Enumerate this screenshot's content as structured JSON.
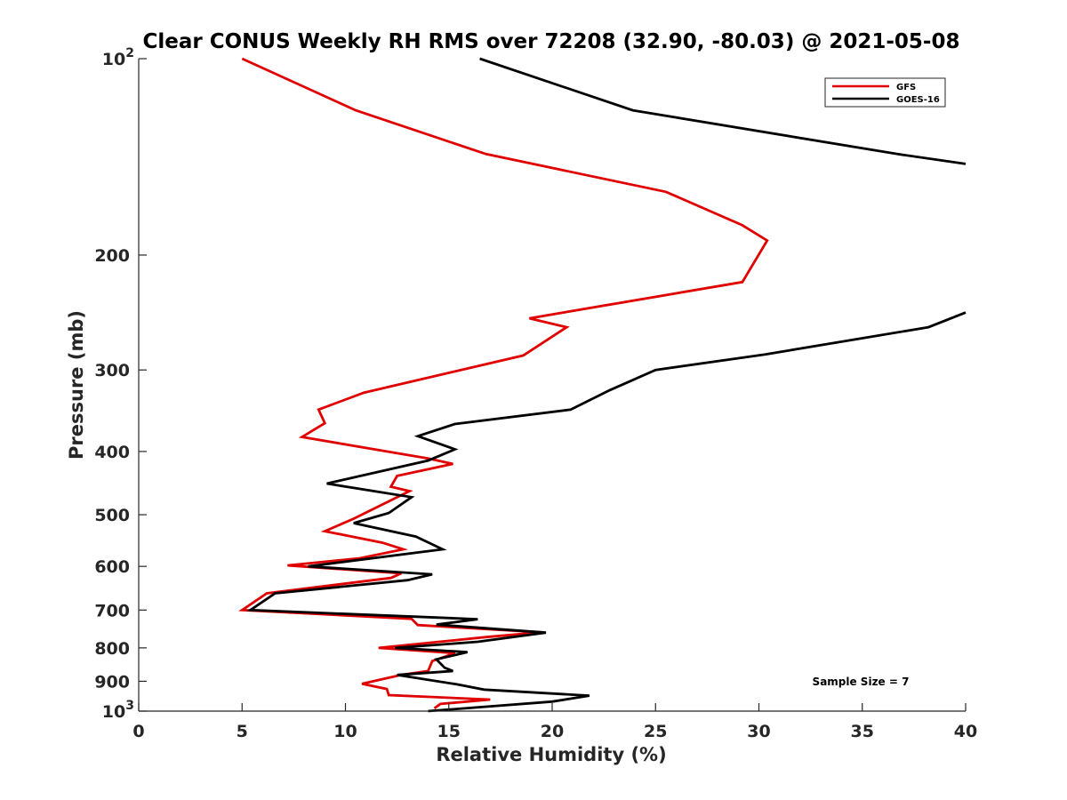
{
  "chart_data": {
    "type": "line",
    "title": "Clear CONUS Weekly RH RMS over 72208 (32.90, -80.03) @ 2021-05-08",
    "xlabel": "Relative Humidity (%)",
    "ylabel": "Pressure (mb)",
    "xlim": [
      0,
      40
    ],
    "ylim": [
      100,
      1000
    ],
    "y_scale": "log",
    "y_reversed": true,
    "grid": false,
    "legend_position": "top-right",
    "x_ticks": [
      0,
      5,
      10,
      15,
      20,
      25,
      30,
      35,
      40
    ],
    "y_ticks": [
      {
        "value": 100,
        "base": "10",
        "exp": "2"
      },
      {
        "value": 200,
        "label": "200"
      },
      {
        "value": 300,
        "label": "300"
      },
      {
        "value": 400,
        "label": "400"
      },
      {
        "value": 500,
        "label": "500"
      },
      {
        "value": 600,
        "label": "600"
      },
      {
        "value": 700,
        "label": "700"
      },
      {
        "value": 800,
        "label": "800"
      },
      {
        "value": 900,
        "label": "900"
      },
      {
        "value": 1000,
        "base": "10",
        "exp": "3"
      }
    ],
    "annotation": "Sample Size = 7",
    "series": [
      {
        "name": "GFS",
        "color": "#e00000",
        "points": [
          [
            5.0,
            100
          ],
          [
            10.5,
            120
          ],
          [
            16.8,
            140
          ],
          [
            25.5,
            160
          ],
          [
            29.2,
            180
          ],
          [
            30.4,
            190
          ],
          [
            29.2,
            220
          ],
          [
            18.9,
            250
          ],
          [
            20.7,
            258
          ],
          [
            18.6,
            285
          ],
          [
            10.9,
            325
          ],
          [
            8.7,
            345
          ],
          [
            9.0,
            362
          ],
          [
            7.9,
            380
          ],
          [
            14.0,
            410
          ],
          [
            15.2,
            418
          ],
          [
            12.5,
            436
          ],
          [
            12.2,
            453
          ],
          [
            13.1,
            460
          ],
          [
            10.4,
            507
          ],
          [
            9.0,
            530
          ],
          [
            11.8,
            552
          ],
          [
            12.8,
            565
          ],
          [
            10.7,
            583
          ],
          [
            7.2,
            598
          ],
          [
            12.7,
            615
          ],
          [
            12.2,
            625
          ],
          [
            6.2,
            660
          ],
          [
            5.0,
            700
          ],
          [
            13.2,
            722
          ],
          [
            13.5,
            738
          ],
          [
            19.5,
            757
          ],
          [
            16.8,
            770
          ],
          [
            11.6,
            800
          ],
          [
            15.3,
            815
          ],
          [
            14.2,
            838
          ],
          [
            14.0,
            868
          ],
          [
            12.7,
            880
          ],
          [
            10.8,
            908
          ],
          [
            12.0,
            925
          ],
          [
            12.1,
            945
          ],
          [
            17.0,
            960
          ],
          [
            14.6,
            975
          ],
          [
            14.3,
            990
          ]
        ]
      },
      {
        "name": "GOES-16",
        "color": "#000000",
        "points": [
          [
            16.5,
            100
          ],
          [
            23.9,
            120
          ],
          [
            36.7,
            140
          ],
          [
            40.0,
            145
          ],
          null,
          [
            40.0,
            245
          ],
          [
            38.2,
            258
          ],
          [
            30.3,
            284
          ],
          [
            25.0,
            300
          ],
          [
            22.8,
            322
          ],
          [
            20.9,
            345
          ],
          [
            15.3,
            363
          ],
          [
            13.5,
            379
          ],
          [
            15.3,
            397
          ],
          [
            14.0,
            413
          ],
          [
            9.1,
            448
          ],
          [
            13.2,
            470
          ],
          [
            12.1,
            497
          ],
          [
            10.4,
            515
          ],
          [
            13.4,
            540
          ],
          [
            14.7,
            565
          ],
          [
            8.2,
            600
          ],
          [
            14.2,
            617
          ],
          [
            13.0,
            630
          ],
          [
            6.6,
            660
          ],
          [
            5.4,
            700
          ],
          [
            16.4,
            723
          ],
          [
            14.4,
            737
          ],
          [
            19.7,
            758
          ],
          [
            16.4,
            783
          ],
          [
            12.4,
            800
          ],
          [
            15.9,
            812
          ],
          [
            14.4,
            833
          ],
          [
            14.8,
            858
          ],
          [
            15.2,
            868
          ],
          [
            12.5,
            880
          ],
          [
            15.4,
            910
          ],
          [
            16.7,
            927
          ],
          [
            21.8,
            947
          ],
          [
            20.0,
            967
          ],
          [
            14.0,
            1000
          ]
        ]
      }
    ]
  }
}
